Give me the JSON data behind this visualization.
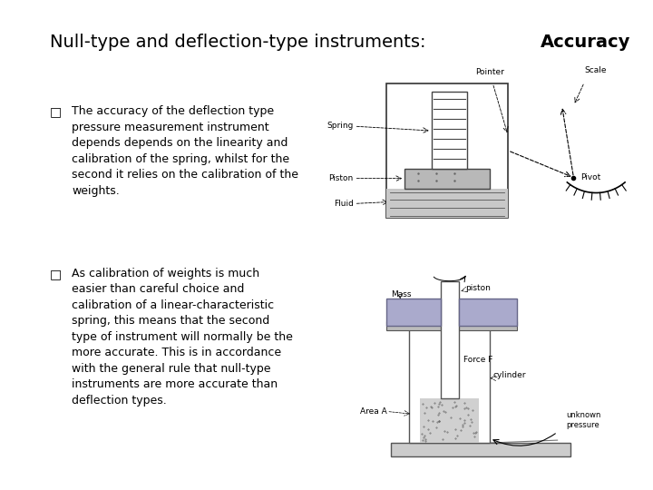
{
  "title_normal": "Null-type and deflection-type instruments: ",
  "title_bold": "Accuracy",
  "bullet1": "The accuracy of the deflection type\npressure measurement instrument\ndepends depends on the linearity and\ncalibration of the spring, whilst for the\nsecond it relies on the calibration of the\nweights.",
  "bullet2": "As calibration of weights is much\neasier than careful choice and\ncalibration of a linear-characteristic\nspring, this means that the second\ntype of instrument will normally be the\nmore accurate. This is in accordance\nwith the general rule that null-type\ninstruments are more accurate than\ndeflection types.",
  "bg_color": "#ffffff",
  "text_color": "#000000",
  "title_fontsize": 14,
  "body_fontsize": 9,
  "bullet_symbol": "□",
  "diag1_label_spring": "Spring",
  "diag1_label_piston": "Piston",
  "diag1_label_fluid": "Fluid",
  "diag1_label_pointer": "Pointer",
  "diag1_label_scale": "Scale",
  "diag1_label_pivot": "Pivot",
  "diag2_label_mass": "Mass",
  "diag2_label_piston": "piston",
  "diag2_label_forceF": "Force F",
  "diag2_label_cylinder": "cylinder",
  "diag2_label_areaA": "Area A",
  "diag2_label_unk": "unknown\npressure"
}
